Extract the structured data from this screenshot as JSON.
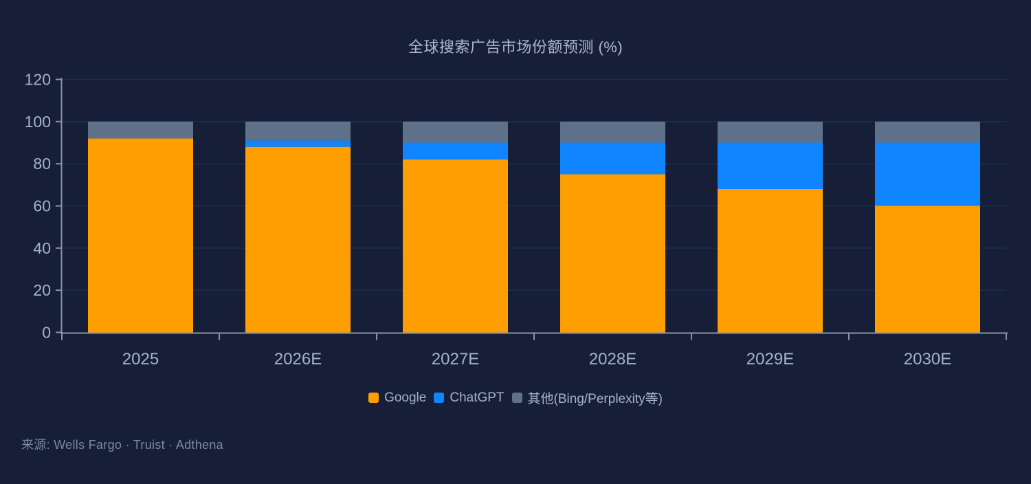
{
  "chart": {
    "title": "全球搜索广告市场份额预测 (%)"
  },
  "source_text": "来源: Wells Fargo · Truist · Adthena",
  "chart_data": {
    "type": "bar",
    "stacked": true,
    "title": "全球搜索广告市场份额预测 (%)",
    "categories": [
      "2025",
      "2026E",
      "2027E",
      "2028E",
      "2029E",
      "2030E"
    ],
    "series": [
      {
        "name": "Google",
        "color": "#ff9e00",
        "values": [
          92,
          88,
          82,
          75,
          68,
          60
        ]
      },
      {
        "name": "ChatGPT",
        "color": "#0f86ff",
        "values": [
          0,
          3,
          8,
          15,
          22,
          30
        ]
      },
      {
        "name": "其他(Bing/Perplexity等)",
        "color": "#5f718a",
        "values": [
          8,
          9,
          10,
          10,
          10,
          10
        ]
      }
    ],
    "ylim": [
      0,
      120
    ],
    "ytick_step": 20,
    "yticks": [
      0,
      20,
      40,
      60,
      80,
      100,
      120
    ],
    "grid": true,
    "legend_position": "bottom",
    "xlabel": "",
    "ylabel": ""
  },
  "theme": {
    "background": "#161f37",
    "grid_color": "#1c2f52",
    "axis_color": "#8a94a4",
    "tick_label_color": "#a6b3c7",
    "title_color": "#acb9cc",
    "source_color": "#7c8ba2"
  }
}
